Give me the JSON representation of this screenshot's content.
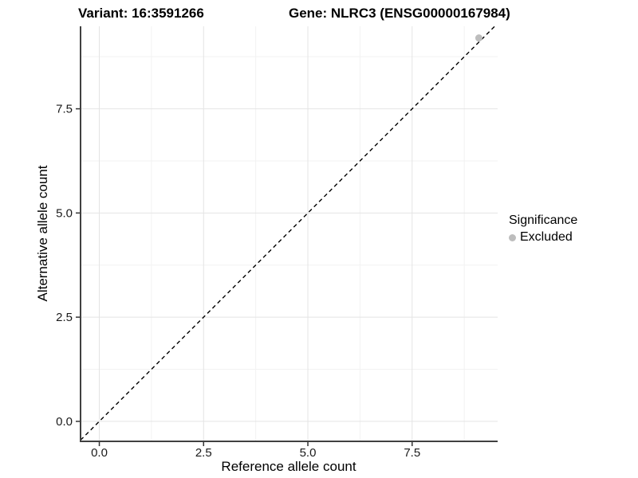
{
  "titles": {
    "left": "Variant: 16:3591266",
    "right": "Gene: NLRC3 (ENSG00000167984)"
  },
  "legend": {
    "title": "Significance",
    "entries": [
      {
        "label": "Excluded",
        "color": "#bdbdbd"
      }
    ],
    "position": "right"
  },
  "chart_data": {
    "type": "scatter",
    "title_left": "Variant: 16:3591266",
    "title_right": "Gene: NLRC3 (ENSG00000167984)",
    "xlabel": "Reference allele count",
    "ylabel": "Alternative allele count",
    "xlim": [
      -0.45,
      9.55
    ],
    "ylim": [
      -0.48,
      9.48
    ],
    "x_ticks": [
      0.0,
      2.5,
      5.0,
      7.5
    ],
    "y_ticks": [
      0.0,
      2.5,
      5.0,
      7.5
    ],
    "x_tick_labels": [
      "0.0",
      "2.5",
      "5.0",
      "7.5"
    ],
    "y_tick_labels": [
      "0.0",
      "2.5",
      "5.0",
      "7.5"
    ],
    "x_minor_ticks": [
      1.25,
      3.75,
      6.25,
      8.75
    ],
    "y_minor_ticks": [
      1.25,
      3.75,
      6.25,
      8.75
    ],
    "grid": "major+minor",
    "background": "#ffffff",
    "reference_line": {
      "type": "identity-diagonal",
      "equation": "y = x",
      "style": "dashed",
      "color": "#000000"
    },
    "series": [
      {
        "name": "Excluded",
        "color": "#bdbdbd",
        "points": [
          [
            9.1,
            9.2
          ]
        ]
      }
    ],
    "legend_title": "Significance",
    "legend_entries": [
      "Excluded"
    ]
  },
  "colors": {
    "grid_major": "#e4e4e4",
    "grid_minor": "#f2f2f2",
    "axis_line": "#404040",
    "tick_mark": "#333333",
    "point": "#bdbdbd",
    "reference_line": "#000000"
  }
}
